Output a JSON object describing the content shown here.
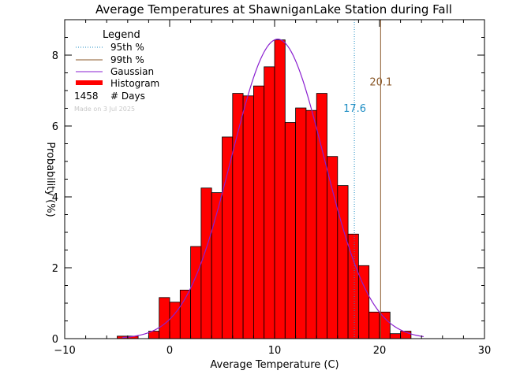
{
  "chart_data": {
    "type": "bar",
    "title": "Average Temperatures at ShawniganLake Station during Fall",
    "xlabel": "Average Temperature (C)",
    "ylabel": "Probability (%)",
    "xlim": [
      -10,
      30
    ],
    "ylim": [
      0,
      9
    ],
    "xticks": [
      -10,
      0,
      10,
      20,
      30
    ],
    "yticks": [
      0,
      2,
      4,
      6,
      8
    ],
    "grid": false,
    "legend_placement": "top-left",
    "legend": {
      "title": "Legend",
      "entries": [
        {
          "label": "95th %",
          "style": "dotted",
          "color": "#1f8ec4"
        },
        {
          "label": "99th %",
          "style": "solid",
          "color": "#8b5a2b"
        },
        {
          "label": "Gaussian",
          "style": "solid",
          "color": "#8a1fd0"
        },
        {
          "label": "Histogram",
          "style": "thick",
          "color": "#ff0000"
        }
      ],
      "days_count": "1458",
      "days_label": "# Days",
      "made_on": "Made on 3 Jul 2025"
    },
    "histogram": {
      "bin_width": 1,
      "bin_starts": [
        -5,
        -4,
        -3,
        -2,
        -1,
        0,
        1,
        2,
        3,
        4,
        5,
        6,
        7,
        8,
        9,
        10,
        11,
        12,
        13,
        14,
        15,
        16,
        17,
        18,
        19,
        20,
        21,
        22
      ],
      "values": [
        0.07,
        0.07,
        0,
        0.21,
        1.16,
        1.03,
        1.37,
        2.6,
        4.25,
        4.12,
        5.69,
        6.92,
        6.85,
        7.13,
        7.67,
        8.43,
        6.1,
        6.51,
        6.44,
        6.92,
        5.14,
        4.32,
        2.95,
        2.06,
        0.75,
        0.75,
        0.14,
        0.21
      ],
      "color": "#ff0000"
    },
    "gaussian": {
      "mean": 10.3,
      "sd": 4.4,
      "peak": 8.45,
      "x_range": [
        -4.5,
        24.2
      ],
      "color": "#8a1fd0"
    },
    "percentile_lines": [
      {
        "name": "95th %",
        "x": 17.6,
        "label": "17.6",
        "style": "dotted",
        "color": "#1f8ec4",
        "label_y": 6.4
      },
      {
        "name": "99th %",
        "x": 20.1,
        "label": "20.1",
        "style": "solid",
        "color": "#8b5a2b",
        "label_y": 7.15
      }
    ]
  }
}
